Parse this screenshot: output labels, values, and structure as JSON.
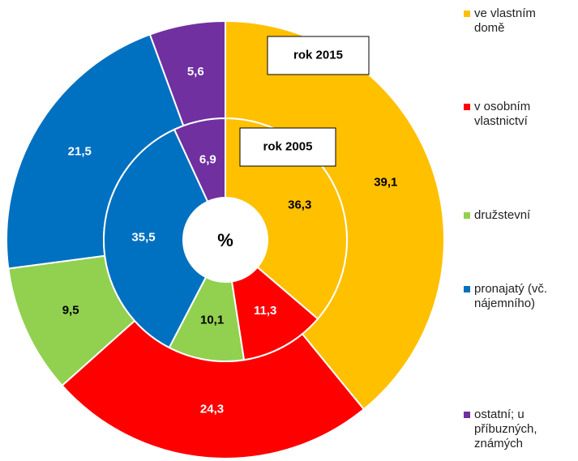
{
  "chart_data": {
    "type": "donut",
    "center_label": "%",
    "categories": [
      "ve vlastním domě",
      "v osobním vlastnictví",
      "družstevní",
      "pronajatý (vč. nájemního)",
      "ostatní; u příbuzných, známých"
    ],
    "colors": [
      "#FFC000",
      "#FF0000",
      "#92D050",
      "#0070C0",
      "#7030A0"
    ],
    "series": [
      {
        "name": "rok 2015",
        "values": [
          39.1,
          24.3,
          9.5,
          21.5,
          5.6
        ],
        "value_labels": [
          "39,1",
          "24,3",
          "9,5",
          "21,5",
          "5,6"
        ]
      },
      {
        "name": "rok 2005",
        "values": [
          36.3,
          11.3,
          10.1,
          35.5,
          6.9
        ],
        "value_labels": [
          "36,3",
          "11,3",
          "10,1",
          "35,5",
          "6,9"
        ]
      }
    ]
  }
}
